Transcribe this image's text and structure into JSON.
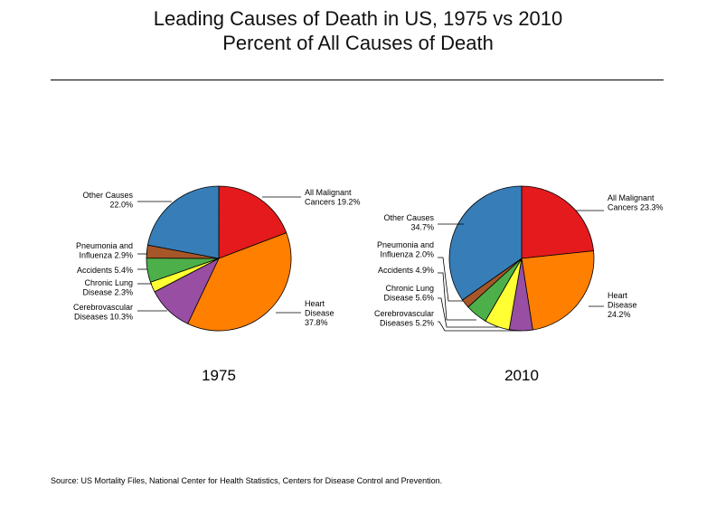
{
  "title": "Leading Causes of Death in US, 1975 vs 2010",
  "subtitle": "Percent of All Causes of Death",
  "source": "Source: US Mortality Files, National Center for Health Statistics, Centers for Disease Control and Prevention.",
  "chart_data": [
    {
      "type": "pie",
      "year_label": "1975",
      "start_angle_deg": 0,
      "direction": "clockwise",
      "slices": [
        {
          "key": "malignant",
          "label_lines": [
            "All Malignant",
            "Cancers 19.2%"
          ],
          "value": 19.2,
          "color": "#e41a1c"
        },
        {
          "key": "heart",
          "label_lines": [
            "Heart",
            "Disease",
            "37.8%"
          ],
          "value": 37.8,
          "color": "#ff7f00"
        },
        {
          "key": "cerebro",
          "label_lines": [
            "Cerebrovascular",
            "Diseases 10.3%"
          ],
          "value": 10.3,
          "color": "#984ea3"
        },
        {
          "key": "chronic",
          "label_lines": [
            "Chronic Lung",
            "Disease 2.3%"
          ],
          "value": 2.3,
          "color": "#ffff33"
        },
        {
          "key": "accidents",
          "label_lines": [
            "Accidents 5.4%"
          ],
          "value": 5.4,
          "color": "#4daf4a"
        },
        {
          "key": "pneumonia",
          "label_lines": [
            "Pneumonia and",
            "Influenza 2.9%"
          ],
          "value": 2.9,
          "color": "#a65628"
        },
        {
          "key": "other",
          "label_lines": [
            "Other Causes",
            "22.0%"
          ],
          "value": 22.0,
          "color": "#377eb8"
        }
      ]
    },
    {
      "type": "pie",
      "year_label": "2010",
      "start_angle_deg": 0,
      "direction": "clockwise",
      "slices": [
        {
          "key": "malignant",
          "label_lines": [
            "All Malignant",
            "Cancers 23.3%"
          ],
          "value": 23.3,
          "color": "#e41a1c"
        },
        {
          "key": "heart",
          "label_lines": [
            "Heart",
            "Disease",
            "24.2%"
          ],
          "value": 24.2,
          "color": "#ff7f00"
        },
        {
          "key": "cerebro",
          "label_lines": [
            "Cerebrovascular",
            "Diseases 5.2%"
          ],
          "value": 5.2,
          "color": "#984ea3"
        },
        {
          "key": "chronic",
          "label_lines": [
            "Chronic Lung",
            "Disease 5.6%"
          ],
          "value": 5.6,
          "color": "#ffff33"
        },
        {
          "key": "accidents",
          "label_lines": [
            "Accidents 4.9%"
          ],
          "value": 4.9,
          "color": "#4daf4a"
        },
        {
          "key": "pneumonia",
          "label_lines": [
            "Pneumonia and",
            "Influenza 2.0%"
          ],
          "value": 2.0,
          "color": "#a65628"
        },
        {
          "key": "other",
          "label_lines": [
            "Other Causes",
            "34.7%"
          ],
          "value": 34.7,
          "color": "#377eb8"
        }
      ]
    }
  ]
}
